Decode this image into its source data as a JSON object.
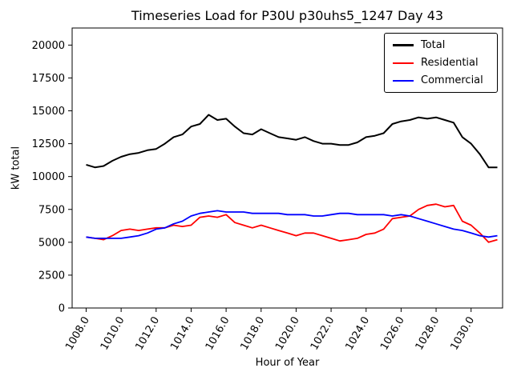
{
  "chart_data": {
    "type": "line",
    "title": "Timeseries Load for P30U p30uhs5_1247  Day 43",
    "xlabel": "Hour of Year",
    "ylabel": "kW total",
    "xlim": [
      1007.2,
      1031.8
    ],
    "ylim": [
      0,
      21300
    ],
    "grid": false,
    "legend_position": "upper right",
    "xtick_values": [
      1008,
      1010,
      1012,
      1014,
      1016,
      1018,
      1020,
      1022,
      1024,
      1026,
      1028,
      1030
    ],
    "xtick_labels": [
      "1008.0",
      "1010.0",
      "1012.0",
      "1014.0",
      "1016.0",
      "1018.0",
      "1020.0",
      "1022.0",
      "1024.0",
      "1026.0",
      "1028.0",
      "1030.0"
    ],
    "ytick_values": [
      0,
      2500,
      5000,
      7500,
      10000,
      12500,
      15000,
      17500,
      20000
    ],
    "ytick_labels": [
      "0",
      "2500",
      "5000",
      "7500",
      "10000",
      "12500",
      "15000",
      "17500",
      "20000"
    ],
    "x": [
      1008.0,
      1008.5,
      1009.0,
      1009.5,
      1010.0,
      1010.5,
      1011.0,
      1011.5,
      1012.0,
      1012.5,
      1013.0,
      1013.5,
      1014.0,
      1014.5,
      1015.0,
      1015.5,
      1016.0,
      1016.5,
      1017.0,
      1017.5,
      1018.0,
      1018.5,
      1019.0,
      1019.5,
      1020.0,
      1020.5,
      1021.0,
      1021.5,
      1022.0,
      1022.5,
      1023.0,
      1023.5,
      1024.0,
      1024.5,
      1025.0,
      1025.5,
      1026.0,
      1026.5,
      1027.0,
      1027.5,
      1028.0,
      1028.5,
      1029.0,
      1029.5,
      1030.0,
      1030.5,
      1031.0,
      1031.5
    ],
    "series": [
      {
        "name": "Total",
        "color": "#000000",
        "linewidth": 2,
        "values": [
          10900,
          10700,
          10800,
          11200,
          11500,
          11700,
          11800,
          12000,
          12100,
          12500,
          13000,
          13200,
          13800,
          14000,
          14700,
          14300,
          14400,
          13800,
          13300,
          13200,
          13600,
          13300,
          13000,
          12900,
          12800,
          13000,
          12700,
          12500,
          12500,
          12400,
          12400,
          12600,
          13000,
          13100,
          13300,
          14000,
          14200,
          14300,
          14500,
          14400,
          14500,
          14300,
          14100,
          13000,
          12500,
          11700,
          10700,
          10700
        ]
      },
      {
        "name": "Residential",
        "color": "#ff0000",
        "linewidth": 1.8,
        "values": [
          5400,
          5300,
          5200,
          5500,
          5900,
          6000,
          5900,
          6000,
          6100,
          6100,
          6300,
          6200,
          6300,
          6900,
          7000,
          6900,
          7100,
          6500,
          6300,
          6100,
          6300,
          6100,
          5900,
          5700,
          5500,
          5700,
          5700,
          5500,
          5300,
          5100,
          5200,
          5300,
          5600,
          5700,
          6000,
          6800,
          6900,
          7000,
          7500,
          7800,
          7900,
          7700,
          7800,
          6600,
          6300,
          5700,
          5000,
          5200
        ]
      },
      {
        "name": "Commercial",
        "color": "#0000ff",
        "linewidth": 1.8,
        "values": [
          5400,
          5300,
          5300,
          5300,
          5300,
          5400,
          5500,
          5700,
          6000,
          6100,
          6400,
          6600,
          7000,
          7200,
          7300,
          7400,
          7300,
          7300,
          7300,
          7200,
          7200,
          7200,
          7200,
          7100,
          7100,
          7100,
          7000,
          7000,
          7100,
          7200,
          7200,
          7100,
          7100,
          7100,
          7100,
          7000,
          7100,
          7000,
          6800,
          6600,
          6400,
          6200,
          6000,
          5900,
          5700,
          5500,
          5400,
          5500
        ]
      }
    ]
  }
}
